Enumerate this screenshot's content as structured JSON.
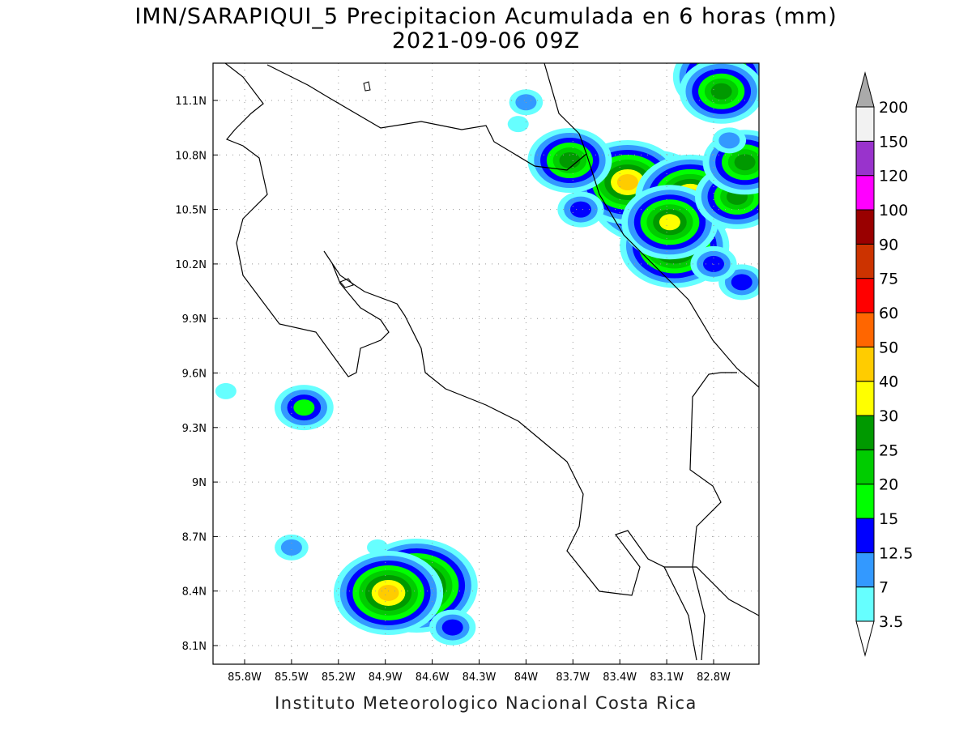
{
  "title": {
    "line1": "IMN/SARAPIQUI_5 Precipitacion Acumulada en 6 horas (mm)",
    "line2": "2021-09-06 09Z"
  },
  "footer": "Instituto Meteorologico Nacional Costa Rica",
  "map": {
    "lon_range": [
      -85.93,
      -82.57
    ],
    "lat_range": [
      8.0,
      11.31
    ],
    "grid": true,
    "lon_ticks": [
      {
        "v": -85.8,
        "label": "85.8W"
      },
      {
        "v": -85.5,
        "label": "85.5W"
      },
      {
        "v": -85.2,
        "label": "85.2W"
      },
      {
        "v": -84.9,
        "label": "84.9W"
      },
      {
        "v": -84.6,
        "label": "84.6W"
      },
      {
        "v": -84.3,
        "label": "84.3W"
      },
      {
        "v": -84.0,
        "label": "84W"
      },
      {
        "v": -83.7,
        "label": "83.7W"
      },
      {
        "v": -83.4,
        "label": "83.4W"
      },
      {
        "v": -83.1,
        "label": "83.1W"
      },
      {
        "v": -82.8,
        "label": "82.8W"
      }
    ],
    "lat_ticks": [
      {
        "v": 11.1,
        "label": "11.1N"
      },
      {
        "v": 10.8,
        "label": "10.8N"
      },
      {
        "v": 10.5,
        "label": "10.5N"
      },
      {
        "v": 10.2,
        "label": "10.2N"
      },
      {
        "v": 9.9,
        "label": "9.9N"
      },
      {
        "v": 9.6,
        "label": "9.6N"
      },
      {
        "v": 9.3,
        "label": "9.3N"
      },
      {
        "v": 9.0,
        "label": "9N"
      },
      {
        "v": 8.7,
        "label": "8.7N"
      },
      {
        "v": 8.4,
        "label": "8.4N"
      },
      {
        "v": 8.1,
        "label": "8.1N"
      }
    ],
    "precip_cells_mm": [
      {
        "lon": -83.2,
        "lat": 10.57,
        "max": 55
      },
      {
        "lon": -83.35,
        "lat": 10.65,
        "max": 45
      },
      {
        "lon": -82.95,
        "lat": 10.57,
        "max": 45
      },
      {
        "lon": -83.05,
        "lat": 10.3,
        "max": 45
      },
      {
        "lon": -83.08,
        "lat": 10.43,
        "max": 35
      },
      {
        "lon": -83.72,
        "lat": 10.77,
        "max": 27
      },
      {
        "lon": -82.75,
        "lat": 11.23,
        "max": 30
      },
      {
        "lon": -82.75,
        "lat": 11.15,
        "max": 27
      },
      {
        "lon": -84.7,
        "lat": 8.43,
        "max": 55
      },
      {
        "lon": -84.88,
        "lat": 8.39,
        "max": 45
      },
      {
        "lon": -85.42,
        "lat": 9.41,
        "max": 16
      },
      {
        "lon": -84.47,
        "lat": 8.2,
        "max": 13
      },
      {
        "lon": -83.65,
        "lat": 10.5,
        "max": 13
      },
      {
        "lon": -82.65,
        "lat": 10.57,
        "max": 27
      },
      {
        "lon": -82.6,
        "lat": 10.76,
        "max": 27
      },
      {
        "lon": -85.5,
        "lat": 8.64,
        "max": 8
      },
      {
        "lon": -84.95,
        "lat": 8.64,
        "max": 4
      },
      {
        "lon": -85.92,
        "lat": 9.5,
        "max": 4
      },
      {
        "lon": -84.05,
        "lat": 10.97,
        "max": 4
      },
      {
        "lon": -84.0,
        "lat": 11.09,
        "max": 8
      },
      {
        "lon": -82.62,
        "lat": 10.1,
        "max": 13
      },
      {
        "lon": -82.8,
        "lat": 10.2,
        "max": 13
      },
      {
        "lon": -82.7,
        "lat": 10.88,
        "max": 8
      }
    ]
  },
  "colorbar": {
    "levels": [
      "3.5",
      "7",
      "12.5",
      "15",
      "20",
      "25",
      "30",
      "40",
      "50",
      "60",
      "75",
      "90",
      "100",
      "120",
      "150",
      "200"
    ],
    "colors": [
      "#66ffff",
      "#3399ff",
      "#0000ff",
      "#00ff00",
      "#00cc00",
      "#009900",
      "#ffff00",
      "#ffcc00",
      "#ff6600",
      "#ff0000",
      "#cc3300",
      "#990000",
      "#ff00ff",
      "#9933cc",
      "#f2f2f2"
    ],
    "under_color": "#ffffff",
    "over_color": "#aaaaaa"
  }
}
